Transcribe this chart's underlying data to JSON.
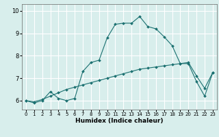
{
  "xlabel": "Humidex (Indice chaleur)",
  "ylabel": "",
  "bg_color": "#d8eeec",
  "grid_color": "#ffffff",
  "line_color": "#1a7070",
  "xlim": [
    -0.5,
    23.5
  ],
  "ylim": [
    5.6,
    10.3
  ],
  "xticks": [
    0,
    1,
    2,
    3,
    4,
    5,
    6,
    7,
    8,
    9,
    10,
    11,
    12,
    13,
    14,
    15,
    16,
    17,
    18,
    19,
    20,
    21,
    22,
    23
  ],
  "yticks": [
    6,
    7,
    8,
    9,
    10
  ],
  "line1_x": [
    0,
    1,
    2,
    3,
    4,
    5,
    6,
    7,
    8,
    9,
    10,
    11,
    12,
    13,
    14,
    15,
    16,
    17,
    18,
    19,
    20,
    21,
    22,
    23
  ],
  "line1_y": [
    6.0,
    5.9,
    6.0,
    6.4,
    6.1,
    6.0,
    6.1,
    7.3,
    7.7,
    7.8,
    8.8,
    9.4,
    9.45,
    9.45,
    9.75,
    9.3,
    9.2,
    8.85,
    8.45,
    7.65,
    7.65,
    6.85,
    6.2,
    7.25
  ],
  "line2_x": [
    0,
    1,
    2,
    3,
    4,
    5,
    6,
    7,
    8,
    9,
    10,
    11,
    12,
    13,
    14,
    15,
    16,
    17,
    18,
    19,
    20,
    21,
    22,
    23
  ],
  "line2_y": [
    6.0,
    5.95,
    6.05,
    6.2,
    6.35,
    6.5,
    6.6,
    6.7,
    6.8,
    6.9,
    7.0,
    7.1,
    7.2,
    7.3,
    7.4,
    7.45,
    7.5,
    7.55,
    7.6,
    7.65,
    7.7,
    7.1,
    6.55,
    7.25
  ],
  "figsize": [
    3.2,
    2.0
  ],
  "dpi": 100
}
